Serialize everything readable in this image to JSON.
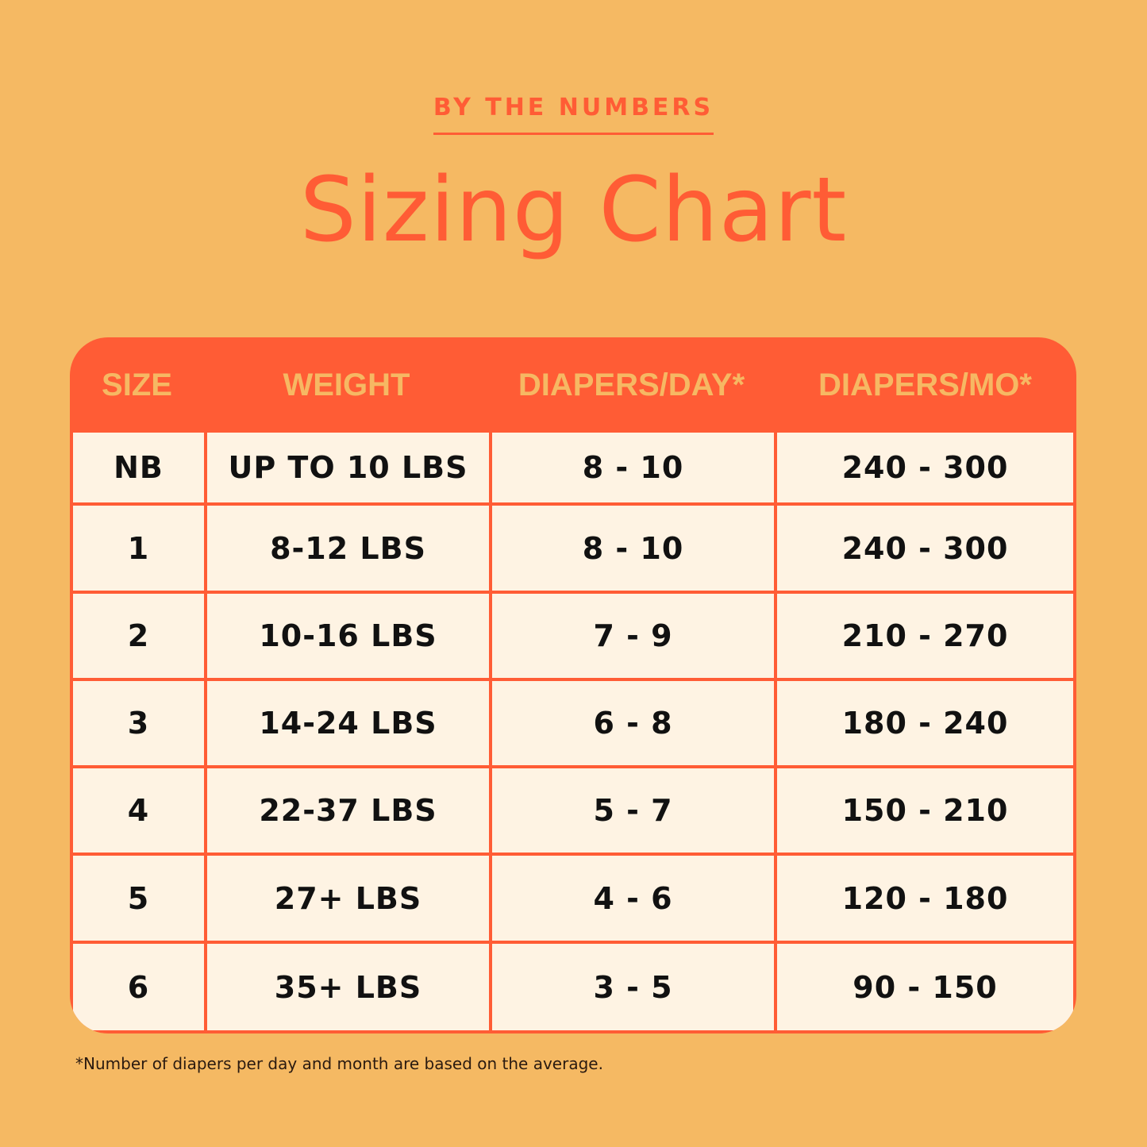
{
  "eyebrow": "BY THE NUMBERS",
  "title": "Sizing Chart",
  "colors": {
    "background": "#F5B963",
    "accent": "#FF5C35",
    "cell": "#FEF3E3",
    "header_text": "#F6B863"
  },
  "chart_data": {
    "type": "table",
    "columns": [
      "SIZE",
      "WEIGHT",
      "DIAPERS/DAY*",
      "DIAPERS/MO*"
    ],
    "rows": [
      [
        "NB",
        "UP TO 10 LBS",
        "8 - 10",
        "240 - 300"
      ],
      [
        "1",
        "8-12 LBS",
        "8 - 10",
        "240 - 300"
      ],
      [
        "2",
        "10-16 LBS",
        "7 - 9",
        "210 - 270"
      ],
      [
        "3",
        "14-24 LBS",
        "6 - 8",
        "180 - 240"
      ],
      [
        "4",
        "22-37 LBS",
        "5 - 7",
        "150 - 210"
      ],
      [
        "5",
        "27+ LBS",
        "4 - 6",
        "120 - 180"
      ],
      [
        "6",
        "35+ LBS",
        "3 - 5",
        "90 - 150"
      ]
    ]
  },
  "footnote": "*Number of diapers per day and month are based on the average."
}
